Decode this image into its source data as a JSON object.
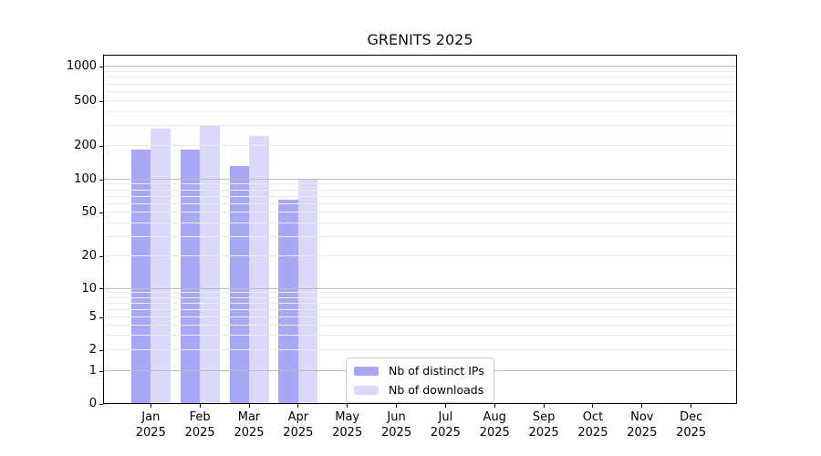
{
  "title": "GRENITS 2025",
  "chart_data": {
    "type": "bar",
    "title": "GRENITS 2025",
    "categories": [
      "Jan 2025",
      "Feb 2025",
      "Mar 2025",
      "Apr 2025",
      "May 2025",
      "Jun 2025",
      "Jul 2025",
      "Aug 2025",
      "Sep 2025",
      "Oct 2025",
      "Nov 2025",
      "Dec 2025"
    ],
    "x_tick_labels": [
      {
        "month": "Jan",
        "year": "2025"
      },
      {
        "month": "Feb",
        "year": "2025"
      },
      {
        "month": "Mar",
        "year": "2025"
      },
      {
        "month": "Apr",
        "year": "2025"
      },
      {
        "month": "May",
        "year": "2025"
      },
      {
        "month": "Jun",
        "year": "2025"
      },
      {
        "month": "Jul",
        "year": "2025"
      },
      {
        "month": "Aug",
        "year": "2025"
      },
      {
        "month": "Sep",
        "year": "2025"
      },
      {
        "month": "Oct",
        "year": "2025"
      },
      {
        "month": "Nov",
        "year": "2025"
      },
      {
        "month": "Dec",
        "year": "2025"
      }
    ],
    "series": [
      {
        "name": "Nb of distinct IPs",
        "color": "#a7a7f4",
        "values": [
          185,
          185,
          132,
          65,
          null,
          null,
          null,
          null,
          null,
          null,
          null,
          null
        ]
      },
      {
        "name": "Nb of downloads",
        "color": "#dadaf8",
        "values": [
          285,
          300,
          245,
          100,
          null,
          null,
          null,
          null,
          null,
          null,
          null,
          null
        ]
      }
    ],
    "yscale": "symlog",
    "ylim": [
      0,
      1000
    ],
    "y_tick_values": [
      1000,
      500,
      200,
      100,
      50,
      20,
      10,
      5,
      2,
      1,
      0
    ],
    "major_grid_values": [
      1,
      10,
      100,
      1000
    ],
    "grid": "on",
    "legend_position": "lower center"
  },
  "colors": {
    "bar_dark": "#a7a7f4",
    "bar_light": "#dadaf8",
    "grid_minor": "#ebebeb",
    "grid_major": "#bcbcbc",
    "axis": "#000000",
    "legend_border": "#cccccc"
  }
}
